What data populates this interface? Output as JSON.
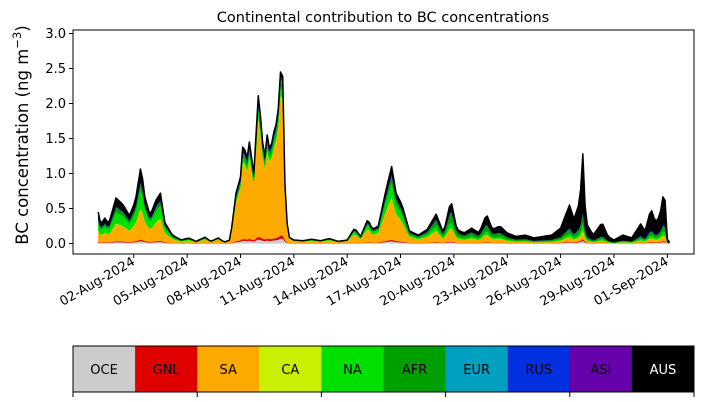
{
  "chart_data": {
    "type": "area",
    "title": "Continental contribution to BC concentrations",
    "xlabel": "",
    "ylabel": "BC concentration (ng m",
    "ylabel_sup": "−3",
    "ylabel_close": ")",
    "x_start": "2024-07-31",
    "x_end": "2024-09-01",
    "xlim": [
      "2024-07-29T14:00",
      "2024-09-02T12:00"
    ],
    "ylim": [
      -0.15,
      3.05
    ],
    "yticks": [
      0.0,
      0.5,
      1.0,
      1.5,
      2.0,
      2.5,
      3.0
    ],
    "ytick_labels": [
      "0.0",
      "0.5",
      "1.0",
      "1.5",
      "2.0",
      "2.5",
      "3.0"
    ],
    "xticks": [
      "2024-08-02",
      "2024-08-05",
      "2024-08-08",
      "2024-08-11",
      "2024-08-14",
      "2024-08-17",
      "2024-08-20",
      "2024-08-23",
      "2024-08-26",
      "2024-08-29",
      "2024-09-01"
    ],
    "xtick_labels": [
      "02-Aug-2024",
      "05-Aug-2024",
      "08-Aug-2024",
      "11-Aug-2024",
      "14-Aug-2024",
      "17-Aug-2024",
      "20-Aug-2024",
      "23-Aug-2024",
      "26-Aug-2024",
      "29-Aug-2024",
      "01-Sep-2024"
    ],
    "grid": false,
    "stacked": true,
    "total_keyframes": [
      [
        "2024-07-31T00:00",
        0.45
      ],
      [
        "2024-07-31T04:00",
        0.25
      ],
      [
        "2024-07-31T08:00",
        0.38
      ],
      [
        "2024-07-31T14:00",
        0.28
      ],
      [
        "2024-08-01T00:00",
        0.65
      ],
      [
        "2024-08-01T10:00",
        0.55
      ],
      [
        "2024-08-01T18:00",
        0.4
      ],
      [
        "2024-08-02T02:00",
        0.6
      ],
      [
        "2024-08-02T10:00",
        1.13
      ],
      [
        "2024-08-02T14:00",
        0.7
      ],
      [
        "2024-08-02T22:00",
        0.4
      ],
      [
        "2024-08-03T06:00",
        0.62
      ],
      [
        "2024-08-03T12:00",
        0.72
      ],
      [
        "2024-08-03T18:00",
        0.3
      ],
      [
        "2024-08-04T04:00",
        0.12
      ],
      [
        "2024-08-04T16:00",
        0.05
      ],
      [
        "2024-08-05T02:00",
        0.08
      ],
      [
        "2024-08-05T12:00",
        0.03
      ],
      [
        "2024-08-06T00:00",
        0.09
      ],
      [
        "2024-08-06T08:00",
        0.03
      ],
      [
        "2024-08-06T18:00",
        0.08
      ],
      [
        "2024-08-07T02:00",
        0.02
      ],
      [
        "2024-08-07T10:00",
        0.05
      ],
      [
        "2024-08-07T18:00",
        0.72
      ],
      [
        "2024-08-08T00:00",
        0.95
      ],
      [
        "2024-08-08T04:00",
        1.52
      ],
      [
        "2024-08-08T08:00",
        1.15
      ],
      [
        "2024-08-08T12:00",
        1.45
      ],
      [
        "2024-08-08T18:00",
        1.0
      ],
      [
        "2024-08-09T00:00",
        2.11
      ],
      [
        "2024-08-09T04:00",
        1.72
      ],
      [
        "2024-08-09T08:00",
        1.15
      ],
      [
        "2024-08-09T12:00",
        1.55
      ],
      [
        "2024-08-09T16:00",
        1.3
      ],
      [
        "2024-08-09T20:00",
        1.55
      ],
      [
        "2024-08-10T00:00",
        1.7
      ],
      [
        "2024-08-10T04:00",
        2.0
      ],
      [
        "2024-08-10T08:00",
        2.9
      ],
      [
        "2024-08-10T12:00",
        0.85
      ],
      [
        "2024-08-10T16:00",
        0.1
      ],
      [
        "2024-08-11T00:00",
        0.05
      ],
      [
        "2024-08-11T12:00",
        0.04
      ],
      [
        "2024-08-12T00:00",
        0.06
      ],
      [
        "2024-08-12T12:00",
        0.04
      ],
      [
        "2024-08-13T00:00",
        0.07
      ],
      [
        "2024-08-13T12:00",
        0.03
      ],
      [
        "2024-08-14T00:00",
        0.05
      ],
      [
        "2024-08-14T10:00",
        0.22
      ],
      [
        "2024-08-14T18:00",
        0.1
      ],
      [
        "2024-08-15T04:00",
        0.35
      ],
      [
        "2024-08-15T10:00",
        0.2
      ],
      [
        "2024-08-15T18:00",
        0.25
      ],
      [
        "2024-08-16T04:00",
        0.75
      ],
      [
        "2024-08-16T12:00",
        1.1
      ],
      [
        "2024-08-16T18:00",
        0.72
      ],
      [
        "2024-08-17T02:00",
        0.55
      ],
      [
        "2024-08-17T12:00",
        0.18
      ],
      [
        "2024-08-18T00:00",
        0.12
      ],
      [
        "2024-08-18T12:00",
        0.2
      ],
      [
        "2024-08-19T00:00",
        0.42
      ],
      [
        "2024-08-19T10:00",
        0.15
      ],
      [
        "2024-08-19T20:00",
        0.62
      ],
      [
        "2024-08-20T04:00",
        0.2
      ],
      [
        "2024-08-20T14:00",
        0.15
      ],
      [
        "2024-08-21T00:00",
        0.22
      ],
      [
        "2024-08-21T10:00",
        0.15
      ],
      [
        "2024-08-21T20:00",
        0.42
      ],
      [
        "2024-08-22T04:00",
        0.2
      ],
      [
        "2024-08-22T14:00",
        0.25
      ],
      [
        "2024-08-23T00:00",
        0.15
      ],
      [
        "2024-08-23T12:00",
        0.1
      ],
      [
        "2024-08-24T00:00",
        0.12
      ],
      [
        "2024-08-24T12:00",
        0.08
      ],
      [
        "2024-08-25T00:00",
        0.1
      ],
      [
        "2024-08-25T12:00",
        0.12
      ],
      [
        "2024-08-26T00:00",
        0.22
      ],
      [
        "2024-08-26T12:00",
        0.55
      ],
      [
        "2024-08-26T18:00",
        0.35
      ],
      [
        "2024-08-27T02:00",
        0.6
      ],
      [
        "2024-08-27T06:00",
        1.28
      ],
      [
        "2024-08-27T10:00",
        0.3
      ],
      [
        "2024-08-27T20:00",
        0.12
      ],
      [
        "2024-08-28T08:00",
        0.3
      ],
      [
        "2024-08-28T16:00",
        0.1
      ],
      [
        "2024-08-29T00:00",
        0.05
      ],
      [
        "2024-08-29T12:00",
        0.12
      ],
      [
        "2024-08-30T00:00",
        0.08
      ],
      [
        "2024-08-30T12:00",
        0.28
      ],
      [
        "2024-08-30T18:00",
        0.18
      ],
      [
        "2024-08-31T02:00",
        0.5
      ],
      [
        "2024-08-31T08:00",
        0.3
      ],
      [
        "2024-08-31T14:00",
        0.4
      ],
      [
        "2024-08-31T20:00",
        0.8
      ],
      [
        "2024-09-01T00:00",
        0.06
      ],
      [
        "2024-09-01T04:00",
        0.01
      ]
    ],
    "series": [
      {
        "name": "OCE",
        "color": "#cccccc",
        "fraction_keyframes": [
          [
            "2024-07-31T00:00",
            0.03
          ],
          [
            "2024-09-01T04:00",
            0.03
          ]
        ]
      },
      {
        "name": "GNL",
        "color": "#e00000",
        "fraction_keyframes": [
          [
            "2024-07-31T00:00",
            0.02
          ],
          [
            "2024-09-01T04:00",
            0.02
          ]
        ]
      },
      {
        "name": "SA",
        "color": "#ffaa00",
        "fraction_keyframes": [
          [
            "2024-07-31T00:00",
            0.35
          ],
          [
            "2024-08-03T12:00",
            0.4
          ],
          [
            "2024-08-05T00:00",
            0.45
          ],
          [
            "2024-08-08T00:00",
            0.83
          ],
          [
            "2024-08-10T08:00",
            0.86
          ],
          [
            "2024-08-11T00:00",
            0.4
          ],
          [
            "2024-08-16T12:00",
            0.55
          ],
          [
            "2024-08-20T00:00",
            0.3
          ],
          [
            "2024-08-27T06:00",
            0.08
          ],
          [
            "2024-08-31T20:00",
            0.1
          ],
          [
            "2024-09-01T04:00",
            0.1
          ]
        ]
      },
      {
        "name": "CA",
        "color": "#c8f000",
        "fraction_keyframes": [
          [
            "2024-07-31T00:00",
            0.02
          ],
          [
            "2024-09-01T04:00",
            0.02
          ]
        ]
      },
      {
        "name": "NA",
        "color": "#00e000",
        "fraction_keyframes": [
          [
            "2024-07-31T00:00",
            0.25
          ],
          [
            "2024-08-03T12:00",
            0.25
          ],
          [
            "2024-08-08T00:00",
            0.06
          ],
          [
            "2024-08-10T08:00",
            0.05
          ],
          [
            "2024-08-16T12:00",
            0.2
          ],
          [
            "2024-08-20T00:00",
            0.15
          ],
          [
            "2024-08-27T06:00",
            0.08
          ],
          [
            "2024-09-01T04:00",
            0.1
          ]
        ]
      },
      {
        "name": "AFR",
        "color": "#009f00",
        "fraction_keyframes": [
          [
            "2024-07-31T00:00",
            0.1
          ],
          [
            "2024-08-08T00:00",
            0.03
          ],
          [
            "2024-08-16T12:00",
            0.08
          ],
          [
            "2024-08-20T00:00",
            0.25
          ],
          [
            "2024-08-27T06:00",
            0.1
          ],
          [
            "2024-09-01T04:00",
            0.1
          ]
        ]
      },
      {
        "name": "EUR",
        "color": "#00a0c0",
        "fraction_keyframes": [
          [
            "2024-07-31T00:00",
            0.01
          ],
          [
            "2024-09-01T04:00",
            0.01
          ]
        ]
      },
      {
        "name": "RUS",
        "color": "#0030e0",
        "fraction_keyframes": [
          [
            "2024-07-31T00:00",
            0.01
          ],
          [
            "2024-09-01T04:00",
            0.01
          ]
        ]
      },
      {
        "name": "ASI",
        "color": "#6600aa",
        "fraction_keyframes": [
          [
            "2024-07-31T00:00",
            0.01
          ],
          [
            "2024-09-01T04:00",
            0.01
          ]
        ]
      },
      {
        "name": "AUS",
        "color": "#000000",
        "fraction_keyframes": [
          [
            "2024-07-31T00:00",
            0.2
          ],
          [
            "2024-08-08T00:00",
            0.05
          ],
          [
            "2024-08-10T08:00",
            0.02
          ],
          [
            "2024-08-16T12:00",
            0.1
          ],
          [
            "2024-08-20T00:00",
            0.2
          ],
          [
            "2024-08-27T06:00",
            0.65
          ],
          [
            "2024-08-31T20:00",
            0.6
          ],
          [
            "2024-09-01T04:00",
            0.6
          ]
        ]
      }
    ],
    "legend": [
      "OCE",
      "GNL",
      "SA",
      "CA",
      "NA",
      "AFR",
      "EUR",
      "RUS",
      "ASI",
      "AUS"
    ],
    "legend_text_colors": [
      "#000000",
      "#000000",
      "#000000",
      "#000000",
      "#000000",
      "#000000",
      "#000000",
      "#000000",
      "#000000",
      "#ffffff"
    ]
  }
}
